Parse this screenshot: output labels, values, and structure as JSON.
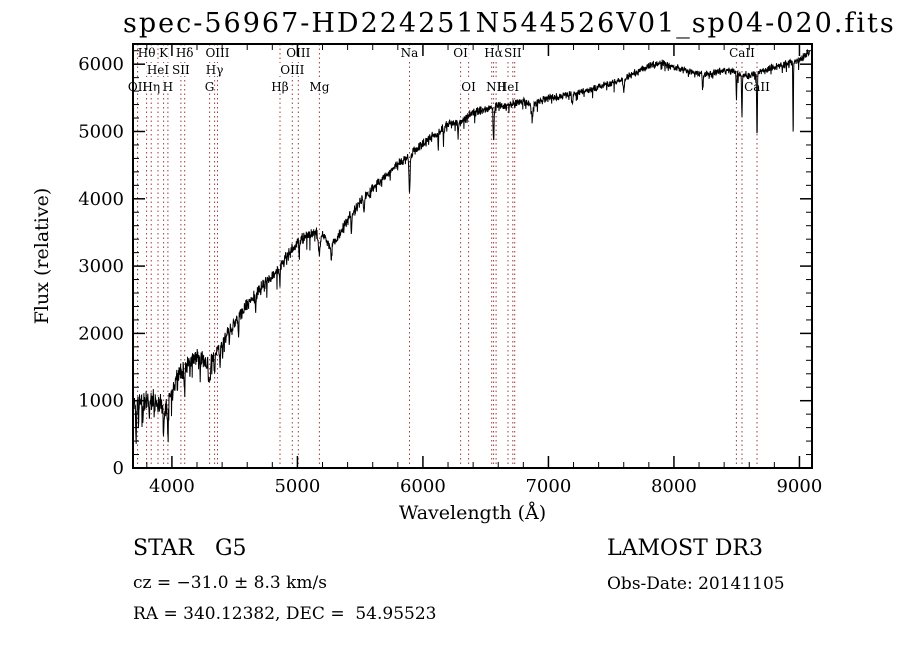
{
  "title": "spec-56967-HD224251N544526V01_sp04-020.fits",
  "footer": {
    "class_label": "STAR   G5",
    "survey": "LAMOST DR3",
    "cz": "cz = −31.0 ± 8.3 km/s",
    "obs_date": "Obs-Date: 20141105",
    "radec": "RA = 340.12382, DEC =  54.95523"
  },
  "chart_data": {
    "type": "line",
    "title": "spec-56967-HD224251N544526V01_sp04-020.fits",
    "xlabel": "Wavelength (Å)",
    "ylabel": "Flux (relative)",
    "xlim": [
      3690,
      9100
    ],
    "ylim": [
      0,
      6300
    ],
    "xticks": [
      4000,
      5000,
      6000,
      7000,
      8000,
      9000
    ],
    "yticks": [
      0,
      1000,
      2000,
      3000,
      4000,
      5000,
      6000
    ],
    "x_minor_step": 200,
    "y_minor_step": 200,
    "grid": false,
    "line_color": "#000000",
    "marker_color": "#9e3c3c",
    "x_start": 3700,
    "x_end": 9080,
    "x_step": 2.2,
    "noise_seed": 11,
    "continuum": [
      [
        3700,
        950
      ],
      [
        3750,
        980
      ],
      [
        3800,
        1000
      ],
      [
        3850,
        1020
      ],
      [
        3900,
        980
      ],
      [
        3950,
        900
      ],
      [
        4000,
        1150
      ],
      [
        4050,
        1400
      ],
      [
        4100,
        1500
      ],
      [
        4150,
        1600
      ],
      [
        4200,
        1650
      ],
      [
        4250,
        1600
      ],
      [
        4300,
        1580
      ],
      [
        4350,
        1700
      ],
      [
        4400,
        1870
      ],
      [
        4500,
        2150
      ],
      [
        4600,
        2430
      ],
      [
        4700,
        2650
      ],
      [
        4800,
        2850
      ],
      [
        4900,
        3100
      ],
      [
        5000,
        3350
      ],
      [
        5100,
        3480
      ],
      [
        5180,
        3520
      ],
      [
        5250,
        3330
      ],
      [
        5320,
        3420
      ],
      [
        5400,
        3680
      ],
      [
        5500,
        3950
      ],
      [
        5600,
        4150
      ],
      [
        5700,
        4350
      ],
      [
        5800,
        4520
      ],
      [
        5900,
        4650
      ],
      [
        6000,
        4820
      ],
      [
        6100,
        4950
      ],
      [
        6200,
        5100
      ],
      [
        6300,
        5150
      ],
      [
        6400,
        5280
      ],
      [
        6500,
        5320
      ],
      [
        6600,
        5380
      ],
      [
        6700,
        5400
      ],
      [
        6800,
        5450
      ],
      [
        6900,
        5420
      ],
      [
        7000,
        5500
      ],
      [
        7100,
        5520
      ],
      [
        7200,
        5560
      ],
      [
        7300,
        5600
      ],
      [
        7400,
        5660
      ],
      [
        7500,
        5720
      ],
      [
        7600,
        5780
      ],
      [
        7700,
        5880
      ],
      [
        7800,
        5980
      ],
      [
        7900,
        6020
      ],
      [
        8000,
        5960
      ],
      [
        8100,
        5900
      ],
      [
        8200,
        5860
      ],
      [
        8300,
        5870
      ],
      [
        8400,
        5920
      ],
      [
        8500,
        5870
      ],
      [
        8600,
        5830
      ],
      [
        8700,
        5900
      ],
      [
        8800,
        5960
      ],
      [
        8900,
        6000
      ],
      [
        9000,
        6060
      ],
      [
        9080,
        6180
      ]
    ],
    "noise_profile": [
      [
        3700,
        200
      ],
      [
        3900,
        180
      ],
      [
        4100,
        150
      ],
      [
        4400,
        120
      ],
      [
        4800,
        110
      ],
      [
        5200,
        95
      ],
      [
        5800,
        85
      ],
      [
        6500,
        75
      ],
      [
        7500,
        62
      ],
      [
        8500,
        68
      ],
      [
        9080,
        80
      ]
    ],
    "absorption_features": [
      [
        3715,
        550,
        4
      ],
      [
        3735,
        300,
        3
      ],
      [
        3770,
        350,
        3
      ],
      [
        3820,
        300,
        3
      ],
      [
        3860,
        350,
        3
      ],
      [
        3933,
        450,
        5
      ],
      [
        3968,
        400,
        5
      ],
      [
        4045,
        250,
        3
      ],
      [
        4101,
        400,
        5
      ],
      [
        4144,
        250,
        3
      ],
      [
        4226,
        300,
        3
      ],
      [
        4300,
        280,
        10
      ],
      [
        4340,
        300,
        5
      ],
      [
        4383,
        350,
        4
      ],
      [
        4405,
        250,
        3
      ],
      [
        4457,
        300,
        3
      ],
      [
        4530,
        250,
        4
      ],
      [
        4668,
        300,
        4
      ],
      [
        4861,
        300,
        5
      ],
      [
        5015,
        250,
        4
      ],
      [
        5175,
        300,
        14
      ],
      [
        5270,
        250,
        8
      ],
      [
        5430,
        250,
        4
      ],
      [
        5530,
        250,
        5
      ],
      [
        5893,
        520,
        7
      ],
      [
        6122,
        200,
        4
      ],
      [
        6163,
        180,
        3
      ],
      [
        6280,
        200,
        4
      ],
      [
        6563,
        520,
        5
      ],
      [
        6870,
        220,
        10
      ],
      [
        7190,
        150,
        6
      ],
      [
        7600,
        180,
        8
      ],
      [
        8230,
        180,
        5
      ],
      [
        8498,
        380,
        4
      ],
      [
        8542,
        650,
        4
      ],
      [
        8662,
        950,
        4
      ],
      [
        8950,
        1150,
        3
      ]
    ],
    "spectral_lines": [
      {
        "label": "Hθ",
        "wavelength": 3798,
        "row": 1
      },
      {
        "label": "K",
        "wavelength": 3934,
        "row": 1
      },
      {
        "label": "Hδ",
        "wavelength": 4102,
        "row": 1
      },
      {
        "label": "OIII",
        "wavelength": 4363,
        "row": 1
      },
      {
        "label": "OIII",
        "wavelength": 5007,
        "row": 1
      },
      {
        "label": "Na",
        "wavelength": 5893,
        "row": 1
      },
      {
        "label": "OI",
        "wavelength": 6300,
        "row": 1
      },
      {
        "label": "Hα",
        "wavelength": 6563,
        "row": 1
      },
      {
        "label": "SII",
        "wavelength": 6716,
        "row": 1
      },
      {
        "label": "CaII",
        "wavelength": 8542,
        "row": 1
      },
      {
        "label": "HeI",
        "wavelength": 3889,
        "row": 2
      },
      {
        "label": "SII",
        "wavelength": 4072,
        "row": 2
      },
      {
        "label": "Hγ",
        "wavelength": 4340,
        "row": 2
      },
      {
        "label": "OIII",
        "wavelength": 4959,
        "row": 2
      },
      {
        "label": "OII",
        "wavelength": 3727,
        "row": 3
      },
      {
        "label": "Hη",
        "wavelength": 3835,
        "row": 3
      },
      {
        "label": "H",
        "wavelength": 3968,
        "row": 3
      },
      {
        "label": "G",
        "wavelength": 4300,
        "row": 3
      },
      {
        "label": "Hβ",
        "wavelength": 4861,
        "row": 3
      },
      {
        "label": "Mg",
        "wavelength": 5175,
        "row": 3
      },
      {
        "label": "OI",
        "wavelength": 6364,
        "row": 3
      },
      {
        "label": "NII",
        "wavelength": 6583,
        "row": 3
      },
      {
        "label": "HeI",
        "wavelength": 6678,
        "row": 3
      },
      {
        "label": "CaII",
        "wavelength": 8662,
        "row": 3
      },
      {
        "label": "",
        "wavelength": 6548,
        "row": 0
      },
      {
        "label": "",
        "wavelength": 6731,
        "row": 0
      },
      {
        "label": "",
        "wavelength": 8498,
        "row": 0
      }
    ]
  }
}
